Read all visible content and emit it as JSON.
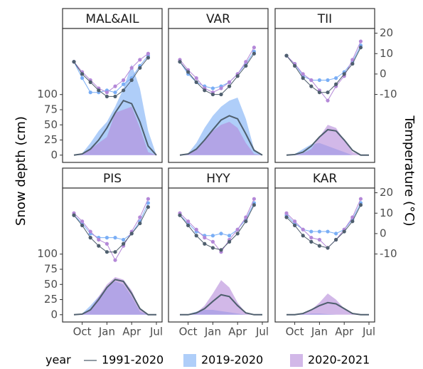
{
  "chart_data": {
    "type": "facet-area-line",
    "ylabel": "Snow depth (cm)",
    "y2label": "Temperature (°C)",
    "legend_title": "year",
    "categories": [
      null,
      "Oct",
      null,
      null,
      "Jan",
      null,
      null,
      "Apr",
      null,
      null,
      "Jul"
    ],
    "ylim": [
      -12,
      209
    ],
    "yticks": [
      0,
      25,
      50,
      75,
      100
    ],
    "y2lim": [
      -43.3,
      22.3
    ],
    "y2ticks": [
      -10,
      0,
      10,
      20
    ],
    "series": [
      {
        "name": "1991-2020",
        "color": "#4f5f6e"
      },
      {
        "name": "2019-2020",
        "color": "#7aaef5"
      },
      {
        "name": "2020-2021",
        "color": "#b488d8"
      }
    ],
    "facets": [
      {
        "title": "MAL&AIL",
        "snow": [
          [
            0,
            2,
            10,
            25,
            45,
            70,
            90,
            85,
            55,
            15,
            0
          ],
          [
            0,
            3,
            20,
            40,
            55,
            80,
            110,
            150,
            110,
            40,
            0
          ],
          [
            0,
            1,
            10,
            20,
            30,
            70,
            75,
            80,
            45,
            5,
            0
          ]
        ],
        "temperature": [
          [
            6,
            0,
            -4,
            -8,
            -11,
            -11,
            -8,
            -3,
            3,
            8,
            null
          ],
          [
            6,
            -2,
            -9,
            -9,
            -8,
            -9,
            -5,
            -2,
            4,
            9,
            null
          ],
          [
            6,
            1,
            -3,
            -7,
            -9,
            -6,
            -3,
            3,
            7,
            10,
            null
          ]
        ]
      },
      {
        "title": "VAR",
        "snow": [
          [
            0,
            2,
            10,
            25,
            42,
            58,
            65,
            60,
            35,
            8,
            0
          ],
          [
            0,
            3,
            20,
            45,
            65,
            80,
            90,
            95,
            60,
            10,
            0
          ],
          [
            0,
            1,
            10,
            25,
            40,
            50,
            55,
            45,
            20,
            2,
            0
          ]
        ],
        "temperature": [
          [
            6,
            1,
            -4,
            -8,
            -10,
            -10,
            -6,
            -1,
            4,
            10,
            null
          ],
          [
            6,
            0,
            -4,
            -6,
            -7,
            -6,
            -4,
            0,
            5,
            11,
            null
          ],
          [
            7,
            2,
            -2,
            -7,
            -9,
            -7,
            -4,
            0,
            6,
            13,
            null
          ]
        ]
      },
      {
        "title": "TII",
        "snow": [
          [
            0,
            1,
            5,
            15,
            30,
            42,
            40,
            25,
            8,
            0,
            0
          ],
          [
            0,
            2,
            10,
            18,
            20,
            15,
            10,
            5,
            0,
            0,
            0
          ],
          [
            0,
            0,
            3,
            10,
            30,
            50,
            45,
            25,
            5,
            0,
            0
          ]
        ],
        "temperature": [
          [
            9,
            4,
            -2,
            -6,
            -9,
            -9,
            -5,
            0,
            5,
            13,
            null
          ],
          [
            9,
            5,
            -1,
            -3,
            -3,
            -3,
            -2,
            1,
            6,
            14,
            null
          ],
          [
            9,
            5,
            0,
            -3,
            -8,
            -13,
            -6,
            -1,
            7,
            16,
            null
          ]
        ]
      },
      {
        "title": "PIS",
        "snow": [
          [
            0,
            1,
            8,
            25,
            45,
            58,
            55,
            35,
            10,
            0,
            0
          ],
          [
            0,
            2,
            15,
            30,
            45,
            55,
            50,
            30,
            5,
            0,
            0
          ],
          [
            0,
            1,
            10,
            30,
            50,
            62,
            58,
            40,
            10,
            0,
            0
          ]
        ],
        "temperature": [
          [
            9,
            4,
            -2,
            -6,
            -9,
            -9,
            -5,
            0,
            5,
            13,
            null
          ],
          [
            9,
            5,
            0,
            -2,
            -2,
            -2,
            -3,
            0,
            6,
            15,
            null
          ],
          [
            10,
            6,
            1,
            -3,
            -5,
            -13,
            -6,
            1,
            8,
            17,
            null
          ]
        ]
      },
      {
        "title": "HYY",
        "snow": [
          [
            0,
            0,
            3,
            10,
            22,
            33,
            30,
            15,
            3,
            0,
            0
          ],
          [
            0,
            1,
            5,
            8,
            8,
            6,
            4,
            2,
            0,
            0,
            0
          ],
          [
            0,
            0,
            3,
            15,
            35,
            57,
            45,
            20,
            3,
            0,
            0
          ]
        ],
        "temperature": [
          [
            9,
            4,
            -1,
            -5,
            -7,
            -8,
            -4,
            0,
            6,
            14,
            null
          ],
          [
            9,
            5,
            1,
            -1,
            -1,
            0,
            -1,
            2,
            7,
            15,
            null
          ],
          [
            10,
            6,
            2,
            -2,
            -4,
            -9,
            -3,
            2,
            8,
            17,
            null
          ]
        ]
      },
      {
        "title": "KAR",
        "snow": [
          [
            0,
            0,
            2,
            8,
            15,
            20,
            18,
            10,
            2,
            0,
            0
          ],
          [
            0,
            0,
            1,
            2,
            2,
            1,
            0,
            0,
            0,
            0,
            0
          ],
          [
            0,
            0,
            2,
            8,
            20,
            35,
            25,
            10,
            2,
            0,
            0
          ]
        ],
        "temperature": [
          [
            8,
            4,
            -1,
            -4,
            -6,
            -7,
            -3,
            1,
            6,
            14,
            null
          ],
          [
            9,
            5,
            2,
            1,
            1,
            1,
            0,
            2,
            7,
            15,
            null
          ],
          [
            10,
            6,
            2,
            -2,
            -3,
            -7,
            -3,
            2,
            8,
            17,
            null
          ]
        ]
      }
    ]
  }
}
